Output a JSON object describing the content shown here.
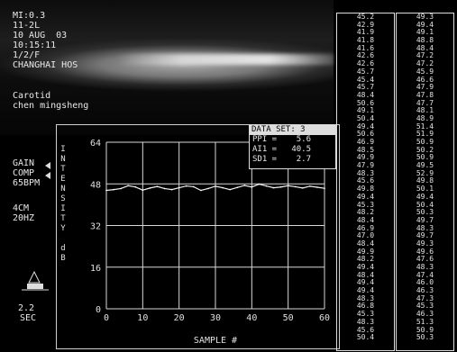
{
  "header": {
    "mi": "MI:0.3",
    "probe": "11-2L",
    "date": "10 AUG  03",
    "time": "10:15:11",
    "frame": "1/2/F",
    "hospital": "CHANGHAI HOS"
  },
  "patient": {
    "exam": "Carotid",
    "name": "chen mingsheng"
  },
  "settings": {
    "gain": "GAIN",
    "comp": "COMP",
    "bpm": "65BPM",
    "depth": "4CM",
    "freq": "20HZ",
    "time_scale": "2.2",
    "time_unit": "SEC"
  },
  "data_set": {
    "title": "DATA SET: 3",
    "ppi": "PPI =    5.6",
    "ai1": "AI1 =   40.5",
    "sd1": "SD1 =    2.7"
  },
  "chart_data": {
    "type": "line",
    "title": "",
    "xlabel": "SAMPLE #",
    "ylabel": "INTENSITY dB",
    "xlim": [
      0,
      60
    ],
    "ylim": [
      0,
      64
    ],
    "xticks": [
      "0",
      "10",
      "20",
      "30",
      "40",
      "50",
      "60"
    ],
    "yticks": [
      "0",
      "16",
      "32",
      "48",
      "64"
    ],
    "grid": true,
    "series": [
      {
        "name": "",
        "x": [
          0,
          2,
          4,
          6,
          8,
          10,
          12,
          14,
          16,
          18,
          20,
          22,
          24,
          26,
          28,
          30,
          32,
          34,
          36,
          38,
          40,
          42,
          44,
          46,
          48,
          50,
          52,
          54,
          56,
          58,
          60
        ],
        "y": [
          45.5,
          45.8,
          46.2,
          47.3,
          46.8,
          45.6,
          46.4,
          47.0,
          46.2,
          45.8,
          46.5,
          47.2,
          46.9,
          45.5,
          46.2,
          47.1,
          46.5,
          45.8,
          46.6,
          47.4,
          46.8,
          47.9,
          47.2,
          46.5,
          46.8,
          47.3,
          46.9,
          46.4,
          47.1,
          46.7,
          46.3
        ]
      }
    ]
  },
  "values": {
    "col1": [
      "45.2",
      "42.9",
      "41.9",
      "41.8",
      "41.6",
      "42.6",
      "42.6",
      "45.7",
      "45.4",
      "45.7",
      "48.4",
      "50.6",
      "49.1",
      "50.4",
      "49.4",
      "50.6",
      "46.9",
      "48.5",
      "49.9",
      "47.9",
      "48.3",
      "45.6",
      "49.8",
      "49.4",
      "45.3",
      "48.2",
      "48.4",
      "46.9",
      "47.0",
      "48.4",
      "49.9",
      "48.2",
      "49.4",
      "48.4",
      "49.4",
      "49.4",
      "48.3",
      "46.8",
      "45.3",
      "48.3",
      "45.6",
      "50.4"
    ],
    "col2": [
      "49.3",
      "49.4",
      "49.1",
      "48.8",
      "48.4",
      "47.2",
      "47.2",
      "45.9",
      "46.6",
      "47.9",
      "47.8",
      "47.7",
      "48.1",
      "48.9",
      "51.4",
      "51.9",
      "50.9",
      "50.2",
      "50.9",
      "49.5",
      "52.9",
      "49.8",
      "50.1",
      "49.4",
      "50.4",
      "50.3",
      "49.7",
      "48.3",
      "49.7",
      "49.3",
      "49.6",
      "47.6",
      "48.3",
      "47.4",
      "46.0",
      "46.3",
      "47.3",
      "45.3",
      "46.3",
      "51.3",
      "50.9",
      "50.3"
    ]
  }
}
